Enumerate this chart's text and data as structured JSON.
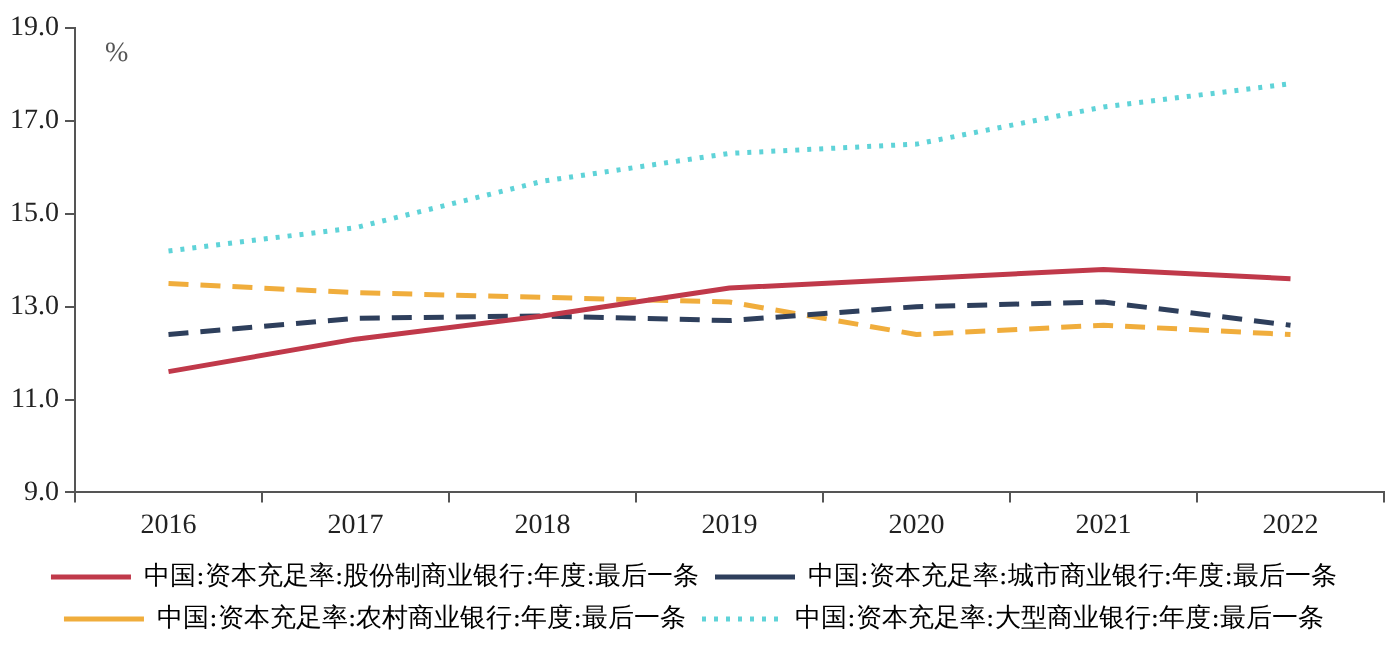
{
  "chart_data": {
    "type": "line",
    "ylabel": "%",
    "categories": [
      "2016",
      "2017",
      "2018",
      "2019",
      "2020",
      "2021",
      "2022"
    ],
    "series": [
      {
        "name": "中国:资本充足率:股份制商业银行:年度:最后一条",
        "color": "#c0394a",
        "line_style": "solid",
        "values": [
          11.6,
          12.3,
          12.8,
          13.4,
          13.6,
          13.8,
          13.6
        ]
      },
      {
        "name": "中国:资本充足率:城市商业银行:年度:最后一条",
        "color": "#2e3f5c",
        "line_style": "dashed",
        "values": [
          12.4,
          12.75,
          12.8,
          12.7,
          13.0,
          13.1,
          12.6
        ]
      },
      {
        "name": "中国:资本充足率:农村商业银行:年度:最后一条",
        "color": "#f0ad3c",
        "line_style": "dashed",
        "values": [
          13.5,
          13.3,
          13.2,
          13.1,
          12.4,
          12.6,
          12.4
        ]
      },
      {
        "name": "中国:资本充足率:大型商业银行:年度:最后一条",
        "color": "#5fd3d8",
        "line_style": "dotted",
        "values": [
          14.2,
          14.7,
          15.7,
          16.3,
          16.5,
          17.3,
          17.8
        ]
      }
    ],
    "ylim": [
      9,
      19
    ],
    "yticks": [
      {
        "value": 9,
        "label": "9.0"
      },
      {
        "value": 11,
        "label": "11.0"
      },
      {
        "value": 13,
        "label": "13.0"
      },
      {
        "value": 15,
        "label": "15.0"
      },
      {
        "value": 17,
        "label": "17.0"
      },
      {
        "value": 19,
        "label": "19.0"
      }
    ],
    "grid": false,
    "legend": "bottom",
    "marker": "none"
  }
}
